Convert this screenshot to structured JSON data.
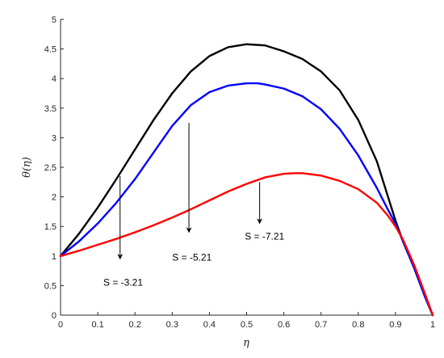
{
  "chart_data": {
    "type": "line",
    "title": "",
    "xlabel": "η",
    "ylabel": "θ(η)",
    "xlim": [
      0,
      1
    ],
    "ylim": [
      0,
      5
    ],
    "grid": false,
    "xticks": [
      "0",
      "0.1",
      "0.2",
      "0.3",
      "0.4",
      "0.5",
      "0.6",
      "0.7",
      "0.8",
      "0.9",
      "1"
    ],
    "yticks": [
      "0",
      "0.5",
      "1",
      "1.5",
      "2",
      "2.5",
      "3",
      "3.5",
      "4",
      "4.5",
      "5"
    ],
    "series": [
      {
        "color": "#000000",
        "x": [
          0,
          0.05,
          0.1,
          0.15,
          0.2,
          0.25,
          0.3,
          0.35,
          0.4,
          0.45,
          0.5,
          0.55,
          0.6,
          0.65,
          0.7,
          0.75,
          0.8,
          0.85,
          0.88,
          0.9,
          0.92,
          0.95,
          0.98,
          1.0
        ],
        "y": [
          1.0,
          1.38,
          1.82,
          2.3,
          2.8,
          3.3,
          3.75,
          4.12,
          4.38,
          4.53,
          4.58,
          4.56,
          4.46,
          4.33,
          4.12,
          3.8,
          3.3,
          2.6,
          2.0,
          1.6,
          1.25,
          0.8,
          0.3,
          0.0
        ]
      },
      {
        "color": "#0000ff",
        "x": [
          0,
          0.05,
          0.1,
          0.15,
          0.2,
          0.25,
          0.3,
          0.35,
          0.4,
          0.45,
          0.5,
          0.53,
          0.55,
          0.6,
          0.65,
          0.7,
          0.75,
          0.8,
          0.85,
          0.88,
          0.9,
          0.92,
          0.95,
          0.98,
          1.0
        ],
        "y": [
          1.0,
          1.25,
          1.55,
          1.9,
          2.3,
          2.75,
          3.2,
          3.55,
          3.77,
          3.88,
          3.92,
          3.92,
          3.9,
          3.83,
          3.7,
          3.48,
          3.15,
          2.7,
          2.15,
          1.78,
          1.55,
          1.25,
          0.8,
          0.3,
          0.0
        ]
      },
      {
        "color": "#ff0000",
        "x": [
          0,
          0.05,
          0.1,
          0.15,
          0.2,
          0.25,
          0.3,
          0.35,
          0.4,
          0.45,
          0.5,
          0.55,
          0.6,
          0.63,
          0.65,
          0.7,
          0.75,
          0.8,
          0.85,
          0.88,
          0.9,
          0.92,
          0.95,
          0.98,
          1.0
        ],
        "y": [
          1.0,
          1.09,
          1.19,
          1.29,
          1.4,
          1.52,
          1.65,
          1.79,
          1.94,
          2.09,
          2.22,
          2.33,
          2.39,
          2.4,
          2.4,
          2.36,
          2.27,
          2.13,
          1.9,
          1.68,
          1.5,
          1.28,
          0.85,
          0.35,
          0.0
        ]
      }
    ],
    "annotations": [
      {
        "text": "S  =  -3.21",
        "arrow_x": 0.16,
        "arrow_from": 2.35,
        "arrow_to": 0.95,
        "text_x": 0.115,
        "text_y": 0.5
      },
      {
        "text": "S  =  -5.21",
        "arrow_x": 0.345,
        "arrow_from": 3.25,
        "arrow_to": 1.4,
        "text_x": 0.3,
        "text_y": 0.92
      },
      {
        "text": "S  =  -7.21",
        "arrow_x": 0.535,
        "arrow_from": 2.25,
        "arrow_to": 1.55,
        "text_x": 0.495,
        "text_y": 1.28
      }
    ]
  }
}
